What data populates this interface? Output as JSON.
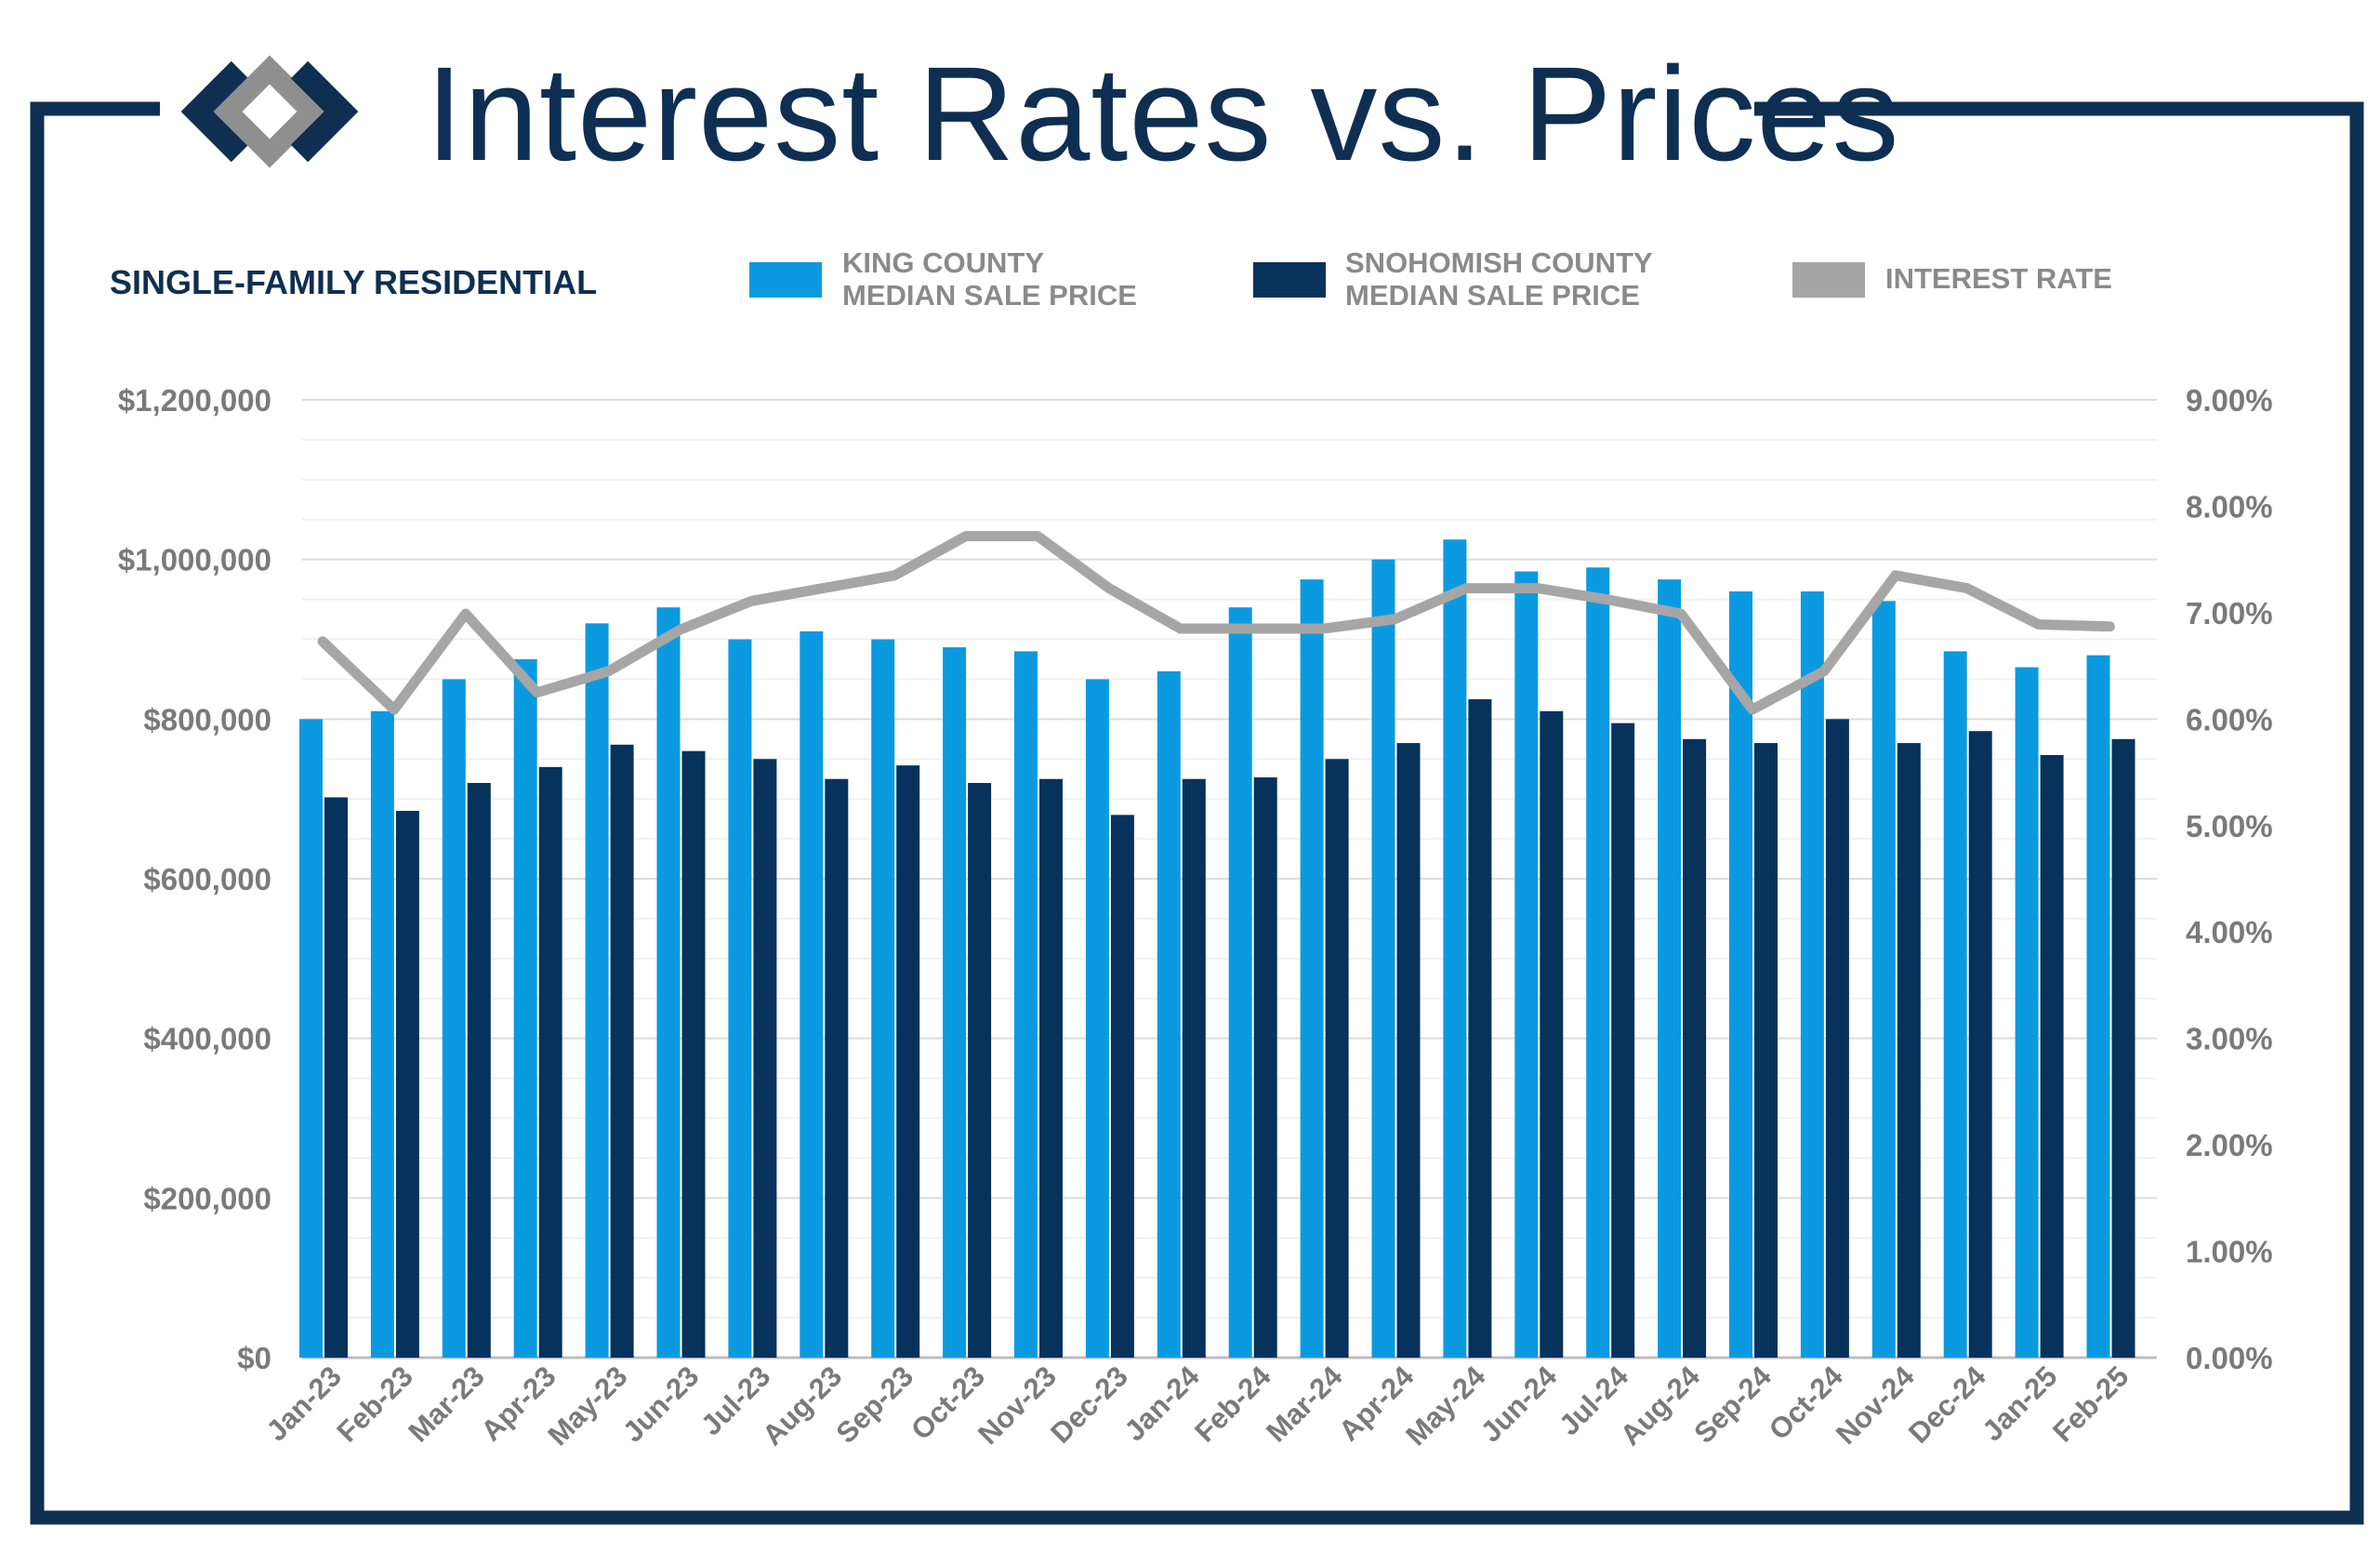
{
  "title": "Interest Rates vs. Prices",
  "subtitle": "SINGLE-FAMILY RESIDENTIAL",
  "colors": {
    "frame": "#0f2f52",
    "king": "#0b9ae0",
    "snohomish": "#06325c",
    "rate": "#a6a6a6",
    "axis_text": "#7a7a7a"
  },
  "icons": {
    "logo": "windermere-logo-icon"
  },
  "legend": [
    {
      "line1": "KING COUNTY",
      "line2": "MEDIAN SALE PRICE",
      "color": "#0b9ae0"
    },
    {
      "line1": "SNOHOMISH COUNTY",
      "line2": "MEDIAN SALE PRICE",
      "color": "#06325c"
    },
    {
      "line1": "INTEREST RATE",
      "line2": "",
      "color": "#a6a6a6"
    }
  ],
  "chart_data": {
    "type": "bar",
    "categories": [
      "Jan-23",
      "Feb-23",
      "Mar-23",
      "Apr-23",
      "May-23",
      "Jun-23",
      "Jul-23",
      "Aug-23",
      "Sep-23",
      "Oct-23",
      "Nov-23",
      "Dec-23",
      "Jan-24",
      "Feb-24",
      "Mar-24",
      "Apr-24",
      "May-24",
      "Jun-24",
      "Jul-24",
      "Aug-24",
      "Sep-24",
      "Oct-24",
      "Nov-24",
      "Dec-24",
      "Jan-25",
      "Feb-25"
    ],
    "series": [
      {
        "name": "KING COUNTY MEDIAN SALE PRICE",
        "kind": "bar",
        "axis": "left",
        "values": [
          800000,
          810000,
          850000,
          875000,
          920000,
          940000,
          900000,
          910000,
          900000,
          890000,
          885000,
          850000,
          860000,
          940000,
          975000,
          1000000,
          1025000,
          985000,
          990000,
          975000,
          960000,
          960000,
          948000,
          885000,
          865000,
          880000
        ]
      },
      {
        "name": "SNOHOMISH COUNTY MEDIAN SALE PRICE",
        "kind": "bar",
        "axis": "left",
        "values": [
          702000,
          685000,
          720000,
          740000,
          768000,
          760000,
          750000,
          725000,
          742000,
          720000,
          725000,
          680000,
          725000,
          727000,
          750000,
          770000,
          825000,
          810000,
          795000,
          775000,
          770000,
          800000,
          770000,
          785000,
          755000,
          775000
        ]
      },
      {
        "name": "INTEREST RATE",
        "kind": "line",
        "axis": "right",
        "values": [
          6.73,
          6.09,
          6.99,
          6.25,
          6.45,
          6.84,
          7.11,
          7.23,
          7.35,
          7.72,
          7.72,
          7.23,
          6.85,
          6.85,
          6.85,
          6.94,
          7.23,
          7.23,
          7.12,
          6.99,
          6.09,
          6.45,
          7.35,
          7.23,
          6.89,
          6.87
        ]
      }
    ],
    "y_left": {
      "ylim": [
        0,
        1200000
      ],
      "ticks": [
        "$1,200,000",
        "$1,000,000",
        "$800,000",
        "$600,000",
        "$400,000",
        "$200,000",
        "$0"
      ]
    },
    "y_right": {
      "ylim": [
        0,
        9
      ],
      "ticks": [
        "9.00%",
        "8.00%",
        "7.00%",
        "6.00%",
        "5.00%",
        "4.00%",
        "3.00%",
        "2.00%",
        "1.00%",
        "0.00%"
      ]
    },
    "grid": true,
    "legend_position": "top"
  }
}
